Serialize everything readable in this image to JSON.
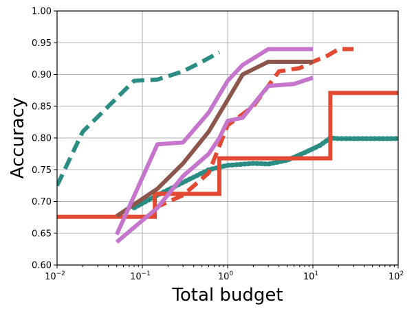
{
  "chart_data": {
    "type": "line",
    "xlabel": "Total budget",
    "ylabel": "Accuracy",
    "xscale": "log",
    "xlim": [
      0.01,
      100
    ],
    "ylim": [
      0.6,
      1.0
    ],
    "grid": true,
    "x_ticks": [
      {
        "base": "10",
        "exp": "−2",
        "value": 0.01
      },
      {
        "base": "10",
        "exp": "−1",
        "value": 0.1
      },
      {
        "base": "10",
        "exp": "0",
        "value": 1
      },
      {
        "base": "10",
        "exp": "1",
        "value": 10
      },
      {
        "base": "10",
        "exp": "2",
        "value": 100
      }
    ],
    "y_ticks": [
      "0.60",
      "0.65",
      "0.70",
      "0.75",
      "0.80",
      "0.85",
      "0.90",
      "0.95",
      "1.00"
    ],
    "series": [
      {
        "color": "#2a8c82",
        "style": "dashed",
        "step": false,
        "points": [
          [
            0.01,
            0.725
          ],
          [
            0.02,
            0.81
          ],
          [
            0.04,
            0.85
          ],
          [
            0.08,
            0.89
          ],
          [
            0.15,
            0.892
          ],
          [
            0.3,
            0.905
          ],
          [
            0.5,
            0.92
          ],
          [
            0.8,
            0.935
          ]
        ]
      },
      {
        "color": "#2a8c82",
        "style": "dotted",
        "step": false,
        "points": [
          [
            0.08,
            0.69
          ],
          [
            0.15,
            0.71
          ],
          [
            0.3,
            0.73
          ],
          [
            0.6,
            0.75
          ],
          [
            1.0,
            0.757
          ],
          [
            2.0,
            0.76
          ],
          [
            3.0,
            0.759
          ],
          [
            5.0,
            0.765
          ],
          [
            8.0,
            0.777
          ],
          [
            12.0,
            0.788
          ],
          [
            16.0,
            0.8
          ],
          [
            20.0,
            0.799
          ],
          [
            50.0,
            0.799
          ],
          [
            100.0,
            0.799
          ]
        ]
      },
      {
        "color": "#e34a33",
        "style": "solid",
        "step": true,
        "points": [
          [
            0.01,
            0.676
          ],
          [
            0.14,
            0.676
          ],
          [
            0.14,
            0.712
          ],
          [
            0.8,
            0.712
          ],
          [
            0.8,
            0.768
          ],
          [
            16.0,
            0.768
          ],
          [
            16.0,
            0.871
          ],
          [
            100.0,
            0.871
          ]
        ]
      },
      {
        "color": "#e34a33",
        "style": "dashed",
        "step": false,
        "points": [
          [
            0.14,
            0.69
          ],
          [
            0.3,
            0.71
          ],
          [
            0.6,
            0.745
          ],
          [
            1.0,
            0.82
          ],
          [
            2.0,
            0.85
          ],
          [
            4.0,
            0.905
          ],
          [
            7.0,
            0.91
          ],
          [
            10.0,
            0.92
          ],
          [
            15.0,
            0.93
          ],
          [
            20.0,
            0.94
          ],
          [
            30.0,
            0.94
          ]
        ]
      },
      {
        "color": "#8c564b",
        "style": "solid",
        "step": false,
        "points": [
          [
            0.05,
            0.677
          ],
          [
            0.15,
            0.72
          ],
          [
            0.3,
            0.76
          ],
          [
            0.6,
            0.81
          ],
          [
            1.0,
            0.86
          ],
          [
            1.5,
            0.9
          ],
          [
            3.0,
            0.92
          ],
          [
            10.0,
            0.92
          ]
        ]
      },
      {
        "color": "#c576cc",
        "style": "solid",
        "step": false,
        "points": [
          [
            0.05,
            0.648
          ],
          [
            0.15,
            0.79
          ],
          [
            0.3,
            0.793
          ],
          [
            0.6,
            0.84
          ],
          [
            1.0,
            0.89
          ],
          [
            1.5,
            0.915
          ],
          [
            3.0,
            0.94
          ],
          [
            10.0,
            0.94
          ]
        ]
      },
      {
        "color": "#c576cc",
        "style": "solid",
        "step": false,
        "points": [
          [
            0.05,
            0.636
          ],
          [
            0.15,
            0.69
          ],
          [
            0.3,
            0.74
          ],
          [
            0.6,
            0.775
          ],
          [
            0.8,
            0.8
          ],
          [
            1.0,
            0.827
          ],
          [
            1.5,
            0.832
          ],
          [
            3.0,
            0.882
          ],
          [
            6.0,
            0.885
          ],
          [
            10.0,
            0.895
          ]
        ]
      }
    ]
  }
}
